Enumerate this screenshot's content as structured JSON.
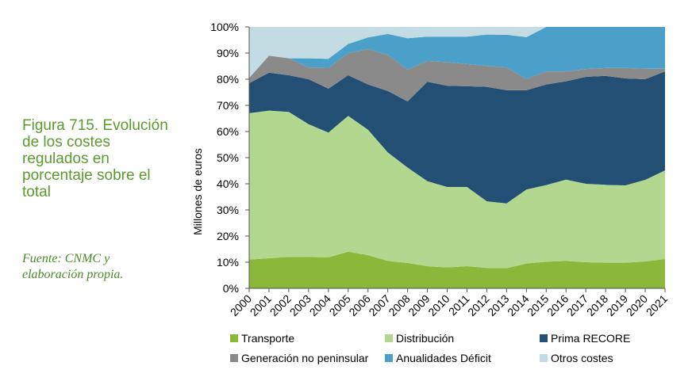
{
  "caption": {
    "figure_title": "Figura 715. Evolución de los costes regulados en porcentaje sobre el total",
    "source": "Fuente: CNMC y elaboración propia."
  },
  "chart_data": {
    "type": "area",
    "stacked_percent": true,
    "title": "",
    "xlabel": "",
    "ylabel": "Millones de euros",
    "ylim": [
      0,
      100
    ],
    "y_ticks": [
      "0%",
      "10%",
      "20%",
      "30%",
      "40%",
      "50%",
      "60%",
      "70%",
      "80%",
      "90%",
      "100%"
    ],
    "grid": false,
    "legend_position": "bottom",
    "x": [
      "2000",
      "2001",
      "2002",
      "2003",
      "2004",
      "2005",
      "2006",
      "2007",
      "2008",
      "2009",
      "2010",
      "2011",
      "2012",
      "2013",
      "2014",
      "2015",
      "2016",
      "2017",
      "2018",
      "2019",
      "2020",
      "2021"
    ],
    "series": [
      {
        "name": "Transporte",
        "color": "#8ab83a",
        "values": [
          11,
          11.5,
          12,
          12,
          11.8,
          14,
          12.7,
          10.5,
          9.7,
          8.5,
          8,
          8.5,
          7.8,
          7.7,
          9.5,
          10.2,
          10.5,
          10,
          9.8,
          9.8,
          10.3,
          11.2
        ]
      },
      {
        "name": "Distribución",
        "color": "#b2d88f",
        "values": [
          56,
          56.5,
          55.5,
          50.8,
          47.8,
          52,
          48,
          41.5,
          36.5,
          32.5,
          30.8,
          30.3,
          25.5,
          24.8,
          28.3,
          29.3,
          31.1,
          30,
          29.8,
          29.6,
          31.2,
          33.9
        ]
      },
      {
        "name": "Prima RECORE",
        "color": "#234f74",
        "values": [
          11.5,
          14.5,
          14,
          17.2,
          16.8,
          15.5,
          17.3,
          23.5,
          25.3,
          38,
          38.7,
          38.5,
          43.8,
          43.3,
          38,
          38.5,
          37.6,
          40.9,
          41.7,
          40.9,
          38.5,
          37.9
        ]
      },
      {
        "name": "Generación no peninsular",
        "color": "#8a8a8a",
        "values": [
          2,
          6.5,
          6.5,
          4.5,
          8,
          8.5,
          13.5,
          13.8,
          12.2,
          8,
          9,
          8.5,
          8,
          8.7,
          4.3,
          5,
          3.8,
          3,
          3,
          4,
          4,
          1
        ]
      },
      {
        "name": "Anualidades Déficit",
        "color": "#4aa0c8",
        "values": [
          0,
          0,
          0,
          3.5,
          3.4,
          3.5,
          4.5,
          8,
          12,
          9.3,
          9.8,
          10.5,
          12,
          12.5,
          16,
          17,
          17,
          16.1,
          15.7,
          15.7,
          16,
          16
        ]
      },
      {
        "name": "Otros costes",
        "color": "#c3dce4",
        "values": [
          19.5,
          11,
          12,
          12,
          12.2,
          6.5,
          4,
          2.7,
          4.3,
          3.7,
          3.7,
          3.7,
          2.9,
          3,
          3.9,
          0,
          0,
          0,
          0,
          0,
          0,
          0
        ]
      }
    ]
  }
}
